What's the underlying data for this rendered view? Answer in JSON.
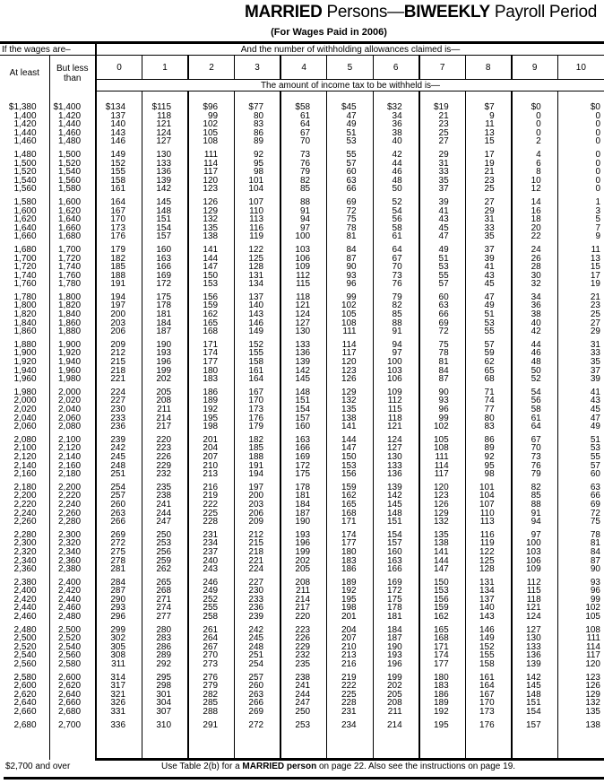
{
  "title": {
    "bold1": "MARRIED",
    "text1": " Persons—",
    "bold2": "BIWEEKLY",
    "text2": " Payroll Period"
  },
  "subtitle": "(For Wages Paid in 2006)",
  "header": {
    "wages_label": "If the wages are–",
    "allowances_label": "And the number of withholding allowances claimed is—",
    "at_least": "At least",
    "but_less_than": "But less than",
    "allowance_columns": [
      "0",
      "1",
      "2",
      "3",
      "4",
      "5",
      "6",
      "7",
      "8",
      "9",
      "10"
    ],
    "amount_label": "The amount of income tax to be withheld is—"
  },
  "rows": [
    [
      "$1,380",
      "$1,400",
      "$134",
      "$115",
      "$96",
      "$77",
      "$58",
      "$45",
      "$32",
      "$19",
      "$7",
      "$0",
      "$0"
    ],
    [
      "1,400",
      "1,420",
      "137",
      "118",
      "99",
      "80",
      "61",
      "47",
      "34",
      "21",
      "9",
      "0",
      "0"
    ],
    [
      "1,420",
      "1,440",
      "140",
      "121",
      "102",
      "83",
      "64",
      "49",
      "36",
      "23",
      "11",
      "0",
      "0"
    ],
    [
      "1,440",
      "1,460",
      "143",
      "124",
      "105",
      "86",
      "67",
      "51",
      "38",
      "25",
      "13",
      "0",
      "0"
    ],
    [
      "1,460",
      "1,480",
      "146",
      "127",
      "108",
      "89",
      "70",
      "53",
      "40",
      "27",
      "15",
      "2",
      "0"
    ],
    [
      "1,480",
      "1,500",
      "149",
      "130",
      "111",
      "92",
      "73",
      "55",
      "42",
      "29",
      "17",
      "4",
      "0"
    ],
    [
      "1,500",
      "1,520",
      "152",
      "133",
      "114",
      "95",
      "76",
      "57",
      "44",
      "31",
      "19",
      "6",
      "0"
    ],
    [
      "1,520",
      "1,540",
      "155",
      "136",
      "117",
      "98",
      "79",
      "60",
      "46",
      "33",
      "21",
      "8",
      "0"
    ],
    [
      "1,540",
      "1,560",
      "158",
      "139",
      "120",
      "101",
      "82",
      "63",
      "48",
      "35",
      "23",
      "10",
      "0"
    ],
    [
      "1,560",
      "1,580",
      "161",
      "142",
      "123",
      "104",
      "85",
      "66",
      "50",
      "37",
      "25",
      "12",
      "0"
    ],
    [
      "1,580",
      "1,600",
      "164",
      "145",
      "126",
      "107",
      "88",
      "69",
      "52",
      "39",
      "27",
      "14",
      "1"
    ],
    [
      "1,600",
      "1,620",
      "167",
      "148",
      "129",
      "110",
      "91",
      "72",
      "54",
      "41",
      "29",
      "16",
      "3"
    ],
    [
      "1,620",
      "1,640",
      "170",
      "151",
      "132",
      "113",
      "94",
      "75",
      "56",
      "43",
      "31",
      "18",
      "5"
    ],
    [
      "1,640",
      "1,660",
      "173",
      "154",
      "135",
      "116",
      "97",
      "78",
      "58",
      "45",
      "33",
      "20",
      "7"
    ],
    [
      "1,660",
      "1,680",
      "176",
      "157",
      "138",
      "119",
      "100",
      "81",
      "61",
      "47",
      "35",
      "22",
      "9"
    ],
    [
      "1,680",
      "1,700",
      "179",
      "160",
      "141",
      "122",
      "103",
      "84",
      "64",
      "49",
      "37",
      "24",
      "11"
    ],
    [
      "1,700",
      "1,720",
      "182",
      "163",
      "144",
      "125",
      "106",
      "87",
      "67",
      "51",
      "39",
      "26",
      "13"
    ],
    [
      "1,720",
      "1,740",
      "185",
      "166",
      "147",
      "128",
      "109",
      "90",
      "70",
      "53",
      "41",
      "28",
      "15"
    ],
    [
      "1,740",
      "1,760",
      "188",
      "169",
      "150",
      "131",
      "112",
      "93",
      "73",
      "55",
      "43",
      "30",
      "17"
    ],
    [
      "1,760",
      "1,780",
      "191",
      "172",
      "153",
      "134",
      "115",
      "96",
      "76",
      "57",
      "45",
      "32",
      "19"
    ],
    [
      "1,780",
      "1,800",
      "194",
      "175",
      "156",
      "137",
      "118",
      "99",
      "79",
      "60",
      "47",
      "34",
      "21"
    ],
    [
      "1,800",
      "1,820",
      "197",
      "178",
      "159",
      "140",
      "121",
      "102",
      "82",
      "63",
      "49",
      "36",
      "23"
    ],
    [
      "1,820",
      "1,840",
      "200",
      "181",
      "162",
      "143",
      "124",
      "105",
      "85",
      "66",
      "51",
      "38",
      "25"
    ],
    [
      "1,840",
      "1,860",
      "203",
      "184",
      "165",
      "146",
      "127",
      "108",
      "88",
      "69",
      "53",
      "40",
      "27"
    ],
    [
      "1,860",
      "1,880",
      "206",
      "187",
      "168",
      "149",
      "130",
      "111",
      "91",
      "72",
      "55",
      "42",
      "29"
    ],
    [
      "1,880",
      "1,900",
      "209",
      "190",
      "171",
      "152",
      "133",
      "114",
      "94",
      "75",
      "57",
      "44",
      "31"
    ],
    [
      "1,900",
      "1,920",
      "212",
      "193",
      "174",
      "155",
      "136",
      "117",
      "97",
      "78",
      "59",
      "46",
      "33"
    ],
    [
      "1,920",
      "1,940",
      "215",
      "196",
      "177",
      "158",
      "139",
      "120",
      "100",
      "81",
      "62",
      "48",
      "35"
    ],
    [
      "1,940",
      "1,960",
      "218",
      "199",
      "180",
      "161",
      "142",
      "123",
      "103",
      "84",
      "65",
      "50",
      "37"
    ],
    [
      "1,960",
      "1,980",
      "221",
      "202",
      "183",
      "164",
      "145",
      "126",
      "106",
      "87",
      "68",
      "52",
      "39"
    ],
    [
      "1,980",
      "2,000",
      "224",
      "205",
      "186",
      "167",
      "148",
      "129",
      "109",
      "90",
      "71",
      "54",
      "41"
    ],
    [
      "2,000",
      "2,020",
      "227",
      "208",
      "189",
      "170",
      "151",
      "132",
      "112",
      "93",
      "74",
      "56",
      "43"
    ],
    [
      "2,020",
      "2,040",
      "230",
      "211",
      "192",
      "173",
      "154",
      "135",
      "115",
      "96",
      "77",
      "58",
      "45"
    ],
    [
      "2,040",
      "2,060",
      "233",
      "214",
      "195",
      "176",
      "157",
      "138",
      "118",
      "99",
      "80",
      "61",
      "47"
    ],
    [
      "2,060",
      "2,080",
      "236",
      "217",
      "198",
      "179",
      "160",
      "141",
      "121",
      "102",
      "83",
      "64",
      "49"
    ],
    [
      "2,080",
      "2,100",
      "239",
      "220",
      "201",
      "182",
      "163",
      "144",
      "124",
      "105",
      "86",
      "67",
      "51"
    ],
    [
      "2,100",
      "2,120",
      "242",
      "223",
      "204",
      "185",
      "166",
      "147",
      "127",
      "108",
      "89",
      "70",
      "53"
    ],
    [
      "2,120",
      "2,140",
      "245",
      "226",
      "207",
      "188",
      "169",
      "150",
      "130",
      "111",
      "92",
      "73",
      "55"
    ],
    [
      "2,140",
      "2,160",
      "248",
      "229",
      "210",
      "191",
      "172",
      "153",
      "133",
      "114",
      "95",
      "76",
      "57"
    ],
    [
      "2,160",
      "2,180",
      "251",
      "232",
      "213",
      "194",
      "175",
      "156",
      "136",
      "117",
      "98",
      "79",
      "60"
    ],
    [
      "2,180",
      "2,200",
      "254",
      "235",
      "216",
      "197",
      "178",
      "159",
      "139",
      "120",
      "101",
      "82",
      "63"
    ],
    [
      "2,200",
      "2,220",
      "257",
      "238",
      "219",
      "200",
      "181",
      "162",
      "142",
      "123",
      "104",
      "85",
      "66"
    ],
    [
      "2,220",
      "2,240",
      "260",
      "241",
      "222",
      "203",
      "184",
      "165",
      "145",
      "126",
      "107",
      "88",
      "69"
    ],
    [
      "2,240",
      "2,260",
      "263",
      "244",
      "225",
      "206",
      "187",
      "168",
      "148",
      "129",
      "110",
      "91",
      "72"
    ],
    [
      "2,260",
      "2,280",
      "266",
      "247",
      "228",
      "209",
      "190",
      "171",
      "151",
      "132",
      "113",
      "94",
      "75"
    ],
    [
      "2,280",
      "2,300",
      "269",
      "250",
      "231",
      "212",
      "193",
      "174",
      "154",
      "135",
      "116",
      "97",
      "78"
    ],
    [
      "2,300",
      "2,320",
      "272",
      "253",
      "234",
      "215",
      "196",
      "177",
      "157",
      "138",
      "119",
      "100",
      "81"
    ],
    [
      "2,320",
      "2,340",
      "275",
      "256",
      "237",
      "218",
      "199",
      "180",
      "160",
      "141",
      "122",
      "103",
      "84"
    ],
    [
      "2,340",
      "2,360",
      "278",
      "259",
      "240",
      "221",
      "202",
      "183",
      "163",
      "144",
      "125",
      "106",
      "87"
    ],
    [
      "2,360",
      "2,380",
      "281",
      "262",
      "243",
      "224",
      "205",
      "186",
      "166",
      "147",
      "128",
      "109",
      "90"
    ],
    [
      "2,380",
      "2,400",
      "284",
      "265",
      "246",
      "227",
      "208",
      "189",
      "169",
      "150",
      "131",
      "112",
      "93"
    ],
    [
      "2,400",
      "2,420",
      "287",
      "268",
      "249",
      "230",
      "211",
      "192",
      "172",
      "153",
      "134",
      "115",
      "96"
    ],
    [
      "2,420",
      "2,440",
      "290",
      "271",
      "252",
      "233",
      "214",
      "195",
      "175",
      "156",
      "137",
      "118",
      "99"
    ],
    [
      "2,440",
      "2,460",
      "293",
      "274",
      "255",
      "236",
      "217",
      "198",
      "178",
      "159",
      "140",
      "121",
      "102"
    ],
    [
      "2,460",
      "2,480",
      "296",
      "277",
      "258",
      "239",
      "220",
      "201",
      "181",
      "162",
      "143",
      "124",
      "105"
    ],
    [
      "2,480",
      "2,500",
      "299",
      "280",
      "261",
      "242",
      "223",
      "204",
      "184",
      "165",
      "146",
      "127",
      "108"
    ],
    [
      "2,500",
      "2,520",
      "302",
      "283",
      "264",
      "245",
      "226",
      "207",
      "187",
      "168",
      "149",
      "130",
      "111"
    ],
    [
      "2,520",
      "2,540",
      "305",
      "286",
      "267",
      "248",
      "229",
      "210",
      "190",
      "171",
      "152",
      "133",
      "114"
    ],
    [
      "2,540",
      "2,560",
      "308",
      "289",
      "270",
      "251",
      "232",
      "213",
      "193",
      "174",
      "155",
      "136",
      "117"
    ],
    [
      "2,560",
      "2,580",
      "311",
      "292",
      "273",
      "254",
      "235",
      "216",
      "196",
      "177",
      "158",
      "139",
      "120"
    ],
    [
      "2,580",
      "2,600",
      "314",
      "295",
      "276",
      "257",
      "238",
      "219",
      "199",
      "180",
      "161",
      "142",
      "123"
    ],
    [
      "2,600",
      "2,620",
      "317",
      "298",
      "279",
      "260",
      "241",
      "222",
      "202",
      "183",
      "164",
      "145",
      "126"
    ],
    [
      "2,620",
      "2,640",
      "321",
      "301",
      "282",
      "263",
      "244",
      "225",
      "205",
      "186",
      "167",
      "148",
      "129"
    ],
    [
      "2,640",
      "2,660",
      "326",
      "304",
      "285",
      "266",
      "247",
      "228",
      "208",
      "189",
      "170",
      "151",
      "132"
    ],
    [
      "2,660",
      "2,680",
      "331",
      "307",
      "288",
      "269",
      "250",
      "231",
      "211",
      "192",
      "173",
      "154",
      "135"
    ],
    [
      "2,680",
      "2,700",
      "336",
      "310",
      "291",
      "272",
      "253",
      "234",
      "214",
      "195",
      "176",
      "157",
      "138"
    ]
  ],
  "footer": {
    "over_label": "$2,700 and over",
    "note_pre": "Use Table 2(b) for a ",
    "note_bold": "MARRIED person",
    "note_post": " on page 22. Also see the instructions on page 19."
  }
}
